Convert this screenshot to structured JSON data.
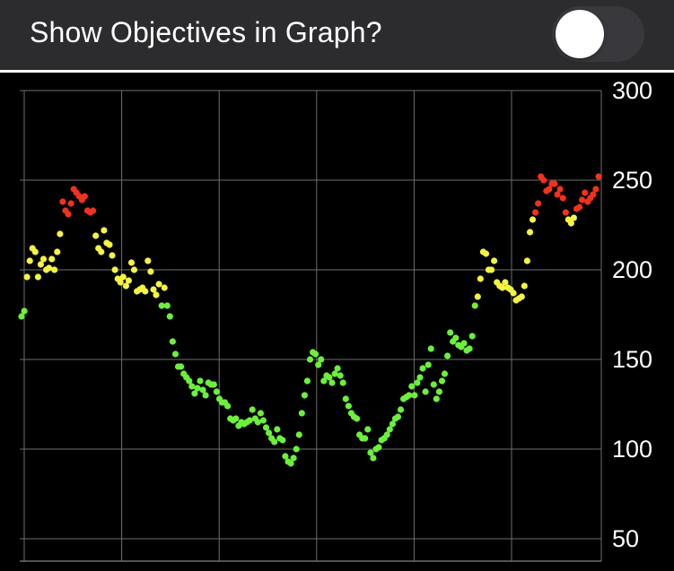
{
  "header": {
    "title": "Show Objectives in Graph?",
    "toggle_on": false
  },
  "colors": {
    "header_bg": "#2c2c2e",
    "toggle_track": "#39393d",
    "plot_bg": "#000000",
    "grid": "#6e6e6e",
    "green": "#6cf03c",
    "yellow": "#f4f442",
    "red": "#f0321e"
  },
  "chart_data": {
    "type": "scatter",
    "title": "",
    "xlabel": "",
    "ylabel": "",
    "ylim": [
      50,
      300
    ],
    "yticks": [
      50,
      100,
      150,
      200,
      250,
      300
    ],
    "grid": true,
    "x_gridlines": 6,
    "color_rule": "green below ~180, yellow ~180-230, red above ~230",
    "values": [
      174,
      177,
      196,
      205,
      212,
      210,
      196,
      203,
      206,
      200,
      201,
      206,
      200,
      210,
      220,
      238,
      233,
      231,
      237,
      245,
      243,
      241,
      239,
      241,
      233,
      232,
      233,
      219,
      212,
      210,
      222,
      215,
      214,
      208,
      200,
      195,
      193,
      196,
      191,
      194,
      204,
      200,
      188,
      189,
      190,
      188,
      205,
      199,
      189,
      186,
      192,
      180,
      190,
      180,
      174,
      160,
      153,
      146,
      146,
      142,
      140,
      138,
      135,
      131,
      134,
      138,
      133,
      130,
      137,
      136,
      136,
      132,
      128,
      126,
      126,
      124,
      117,
      116,
      117,
      113,
      115,
      114,
      115,
      116,
      122,
      117,
      115,
      120,
      116,
      112,
      109,
      106,
      104,
      111,
      106,
      105,
      96,
      93,
      92,
      95,
      100,
      108,
      120,
      130,
      138,
      150,
      154,
      153,
      147,
      150,
      138,
      141,
      140,
      137,
      142,
      145,
      141,
      137,
      128,
      124,
      120,
      118,
      117,
      108,
      106,
      106,
      111,
      98,
      95,
      100,
      101,
      105,
      106,
      108,
      111,
      114,
      117,
      118,
      122,
      128,
      129,
      130,
      135,
      130,
      137,
      140,
      145,
      132,
      147,
      156,
      136,
      128,
      132,
      138,
      142,
      152,
      165,
      160,
      162,
      158,
      157,
      159,
      155,
      156,
      163,
      180,
      185,
      195,
      210,
      209,
      200,
      200,
      205,
      193,
      191,
      190,
      193,
      190,
      189,
      187,
      183,
      184,
      185,
      191,
      205,
      221,
      228,
      232,
      237,
      252,
      250,
      244,
      245,
      248,
      248,
      242,
      245,
      240,
      232,
      228,
      226,
      229,
      234,
      235,
      239,
      243,
      238,
      240,
      242,
      245,
      252
    ]
  }
}
